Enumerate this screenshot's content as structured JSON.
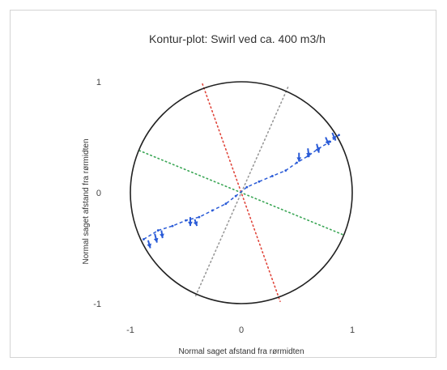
{
  "chart_data": {
    "type": "line",
    "title": "Kontur-plot: Swirl ved ca. 400 m3/h",
    "xlabel": "Normal saget afstand fra rørmidten",
    "ylabel": "Normal saget afstand fra rørmidten",
    "xlim": [
      -1,
      1
    ],
    "ylim": [
      -1,
      1
    ],
    "x_ticks": [
      {
        "value": -1,
        "label": "-1"
      },
      {
        "value": 0,
        "label": "0"
      },
      {
        "value": 1,
        "label": "1"
      }
    ],
    "y_ticks": [
      {
        "value": 1,
        "label": "1"
      },
      {
        "value": 0,
        "label": "0"
      },
      {
        "value": -1,
        "label": "-1"
      }
    ],
    "grid": false,
    "boundary_circle": {
      "cx": 0,
      "cy": 0,
      "r": 1,
      "color": "#222222"
    },
    "reference_lines": [
      {
        "x1": -0.35,
        "y1": 0.98,
        "x2": 0.35,
        "y2": -0.98,
        "color": "#e0453a",
        "style": "dotted"
      },
      {
        "x1": -0.92,
        "y1": 0.38,
        "x2": 0.92,
        "y2": -0.38,
        "color": "#3aa655",
        "style": "dotted"
      },
      {
        "x1": 0.42,
        "y1": 0.95,
        "x2": -0.42,
        "y2": -0.95,
        "color": "#999999",
        "style": "dotted"
      }
    ],
    "series": [
      {
        "color": "#2a5bd7",
        "style": "dashed",
        "x": [
          -0.88,
          -0.75,
          -0.62,
          -0.5,
          -0.38,
          -0.26,
          -0.14,
          -0.05,
          0.05,
          0.16,
          0.28,
          0.4,
          0.5,
          0.6,
          0.7,
          0.8,
          0.88
        ],
        "y": [
          -0.42,
          -0.34,
          -0.3,
          -0.25,
          -0.22,
          -0.16,
          -0.1,
          -0.03,
          0.05,
          0.1,
          0.15,
          0.2,
          0.27,
          0.33,
          0.4,
          0.46,
          0.52
        ]
      }
    ],
    "vectors": [
      {
        "x": -0.84,
        "y": -0.43,
        "dx": 0.02,
        "dy": -0.07
      },
      {
        "x": -0.78,
        "y": -0.37,
        "dx": 0.02,
        "dy": -0.08
      },
      {
        "x": -0.72,
        "y": -0.34,
        "dx": 0.01,
        "dy": -0.07
      },
      {
        "x": -0.46,
        "y": -0.22,
        "dx": 0.0,
        "dy": -0.08
      },
      {
        "x": -0.42,
        "y": -0.24,
        "dx": 0.02,
        "dy": -0.06
      },
      {
        "x": 0.52,
        "y": 0.36,
        "dx": 0.0,
        "dy": -0.08
      },
      {
        "x": 0.6,
        "y": 0.4,
        "dx": 0.01,
        "dy": -0.08
      },
      {
        "x": 0.68,
        "y": 0.44,
        "dx": 0.02,
        "dy": -0.08
      },
      {
        "x": 0.76,
        "y": 0.5,
        "dx": 0.03,
        "dy": -0.07
      },
      {
        "x": 0.82,
        "y": 0.54,
        "dx": 0.03,
        "dy": -0.07
      }
    ]
  },
  "colors": {
    "background": "#ffffff",
    "frame_border": "#d4d4d4"
  }
}
